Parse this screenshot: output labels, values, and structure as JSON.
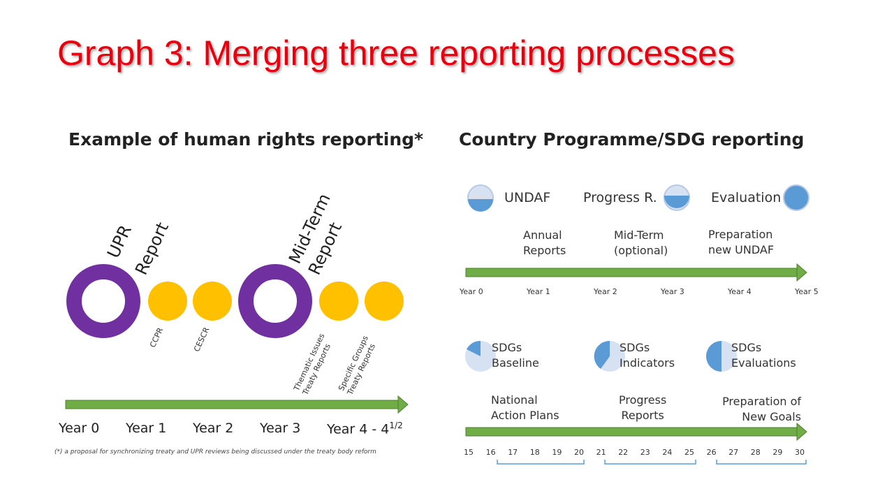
{
  "title": "Graph 3: Merging three reporting processes",
  "left": {
    "heading": "Example of human rights reporting*",
    "upr_label": [
      "UPR",
      "Report"
    ],
    "midterm_label": [
      "Mid-Term",
      "Report"
    ],
    "ccpr": "CCPR",
    "cescr": "CESCR",
    "thematic": [
      "Thematic Issues",
      "Treaty Reports"
    ],
    "specific": [
      "Specific Groups",
      "Treaty Reports"
    ],
    "years": [
      "Year 0",
      "Year 1",
      "Year 2",
      "Year 3",
      "Year 4 - 4"
    ],
    "year_super": "1/2",
    "footnote": "(*) a proposal for synchronizing treaty and UPR reviews being discussed under the treaty body reform"
  },
  "right": {
    "heading": "Country Programme/SDG reporting",
    "undaf": "UNDAF",
    "progress_r": "Progress R.",
    "evaluation": "Evaluation",
    "annual": [
      "Annual",
      "Reports"
    ],
    "midterm_opt": [
      "Mid-Term",
      "(optional)"
    ],
    "prep_undaf": [
      "Preparation",
      "new UNDAF"
    ],
    "years": [
      "Year 0",
      "Year 1",
      "Year 2",
      "Year 3",
      "Year 4",
      "Year 5"
    ],
    "sdg_baseline": [
      "SDGs",
      "Baseline"
    ],
    "sdg_indicators": [
      "SDGs",
      "Indicators"
    ],
    "sdg_evaluations": [
      "SDGs",
      "Evaluations"
    ],
    "nap": [
      "National",
      "Action Plans"
    ],
    "progress_reports": [
      "Progress",
      "Reports"
    ],
    "prep_goals": [
      "Preparation of",
      "New Goals"
    ],
    "numbers": [
      "15",
      "16",
      "17",
      "18",
      "19",
      "20",
      "21",
      "22",
      "23",
      "24",
      "25",
      "26",
      "27",
      "28",
      "29",
      "30"
    ]
  },
  "colors": {
    "title": "#e8000e",
    "purple": "#7030a0",
    "gold": "#ffc000",
    "green": "#70ad47",
    "blue": "#5b9bd5",
    "lightblue": "#d6e1f2",
    "bracket": "#5b9bd5"
  }
}
